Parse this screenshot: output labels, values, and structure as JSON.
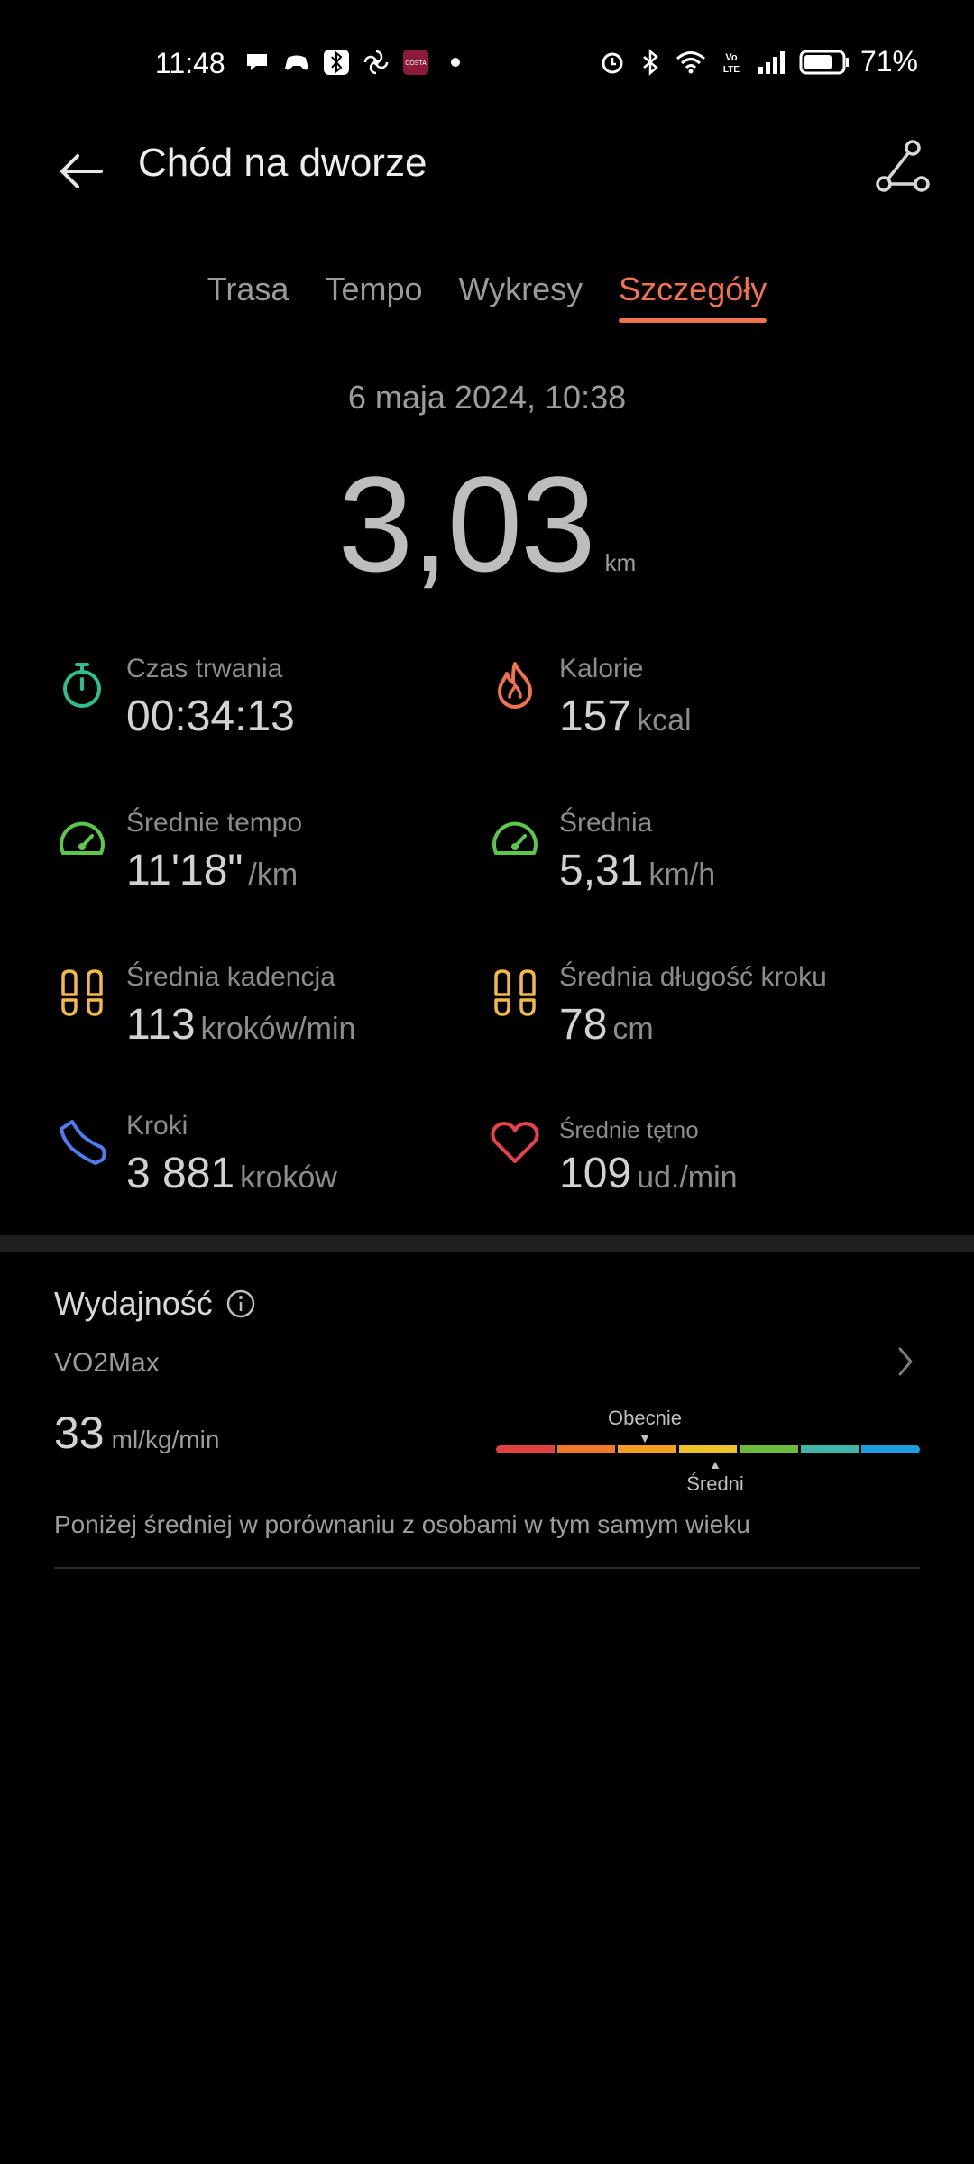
{
  "status_bar": {
    "time": "11:48",
    "battery": "71%",
    "left_icons": [
      "chat-bubble-icon",
      "game-controller-icon",
      "bluetooth-app-icon",
      "fan-icon",
      "costa-app-icon",
      "dot-icon"
    ],
    "right_icons": [
      "alarm-icon",
      "bluetooth-icon",
      "wifi-icon",
      "volte-icon",
      "signal-icon",
      "battery-icon"
    ]
  },
  "header": {
    "title": "Chód na dworze"
  },
  "tabs": [
    {
      "label": "Trasa",
      "active": false
    },
    {
      "label": "Tempo",
      "active": false
    },
    {
      "label": "Wykresy",
      "active": false
    },
    {
      "label": "Szczegóły",
      "active": true
    }
  ],
  "summary": {
    "date": "6 maja 2024, 10:38",
    "distance": "3,03",
    "distance_unit": "km"
  },
  "metrics": {
    "duration": {
      "label": "Czas trwania",
      "value": "00:34:13",
      "unit": ""
    },
    "calories": {
      "label": "Kalorie",
      "value": "157",
      "unit": "kcal"
    },
    "avg_pace": {
      "label": "Średnie tempo",
      "value": "11'18\"",
      "unit": "/km"
    },
    "avg_speed": {
      "label": "Średnia",
      "value": "5,31",
      "unit": "km/h"
    },
    "avg_cadence": {
      "label": "Średnia kadencja",
      "value": "113",
      "unit": "kroków/min"
    },
    "avg_stride": {
      "label": "Średnia długość kroku",
      "value": "78",
      "unit": "cm"
    },
    "steps": {
      "label": "Kroki",
      "value": "3 881",
      "unit": "kroków"
    },
    "avg_hr": {
      "label": "Średnie tętno",
      "value": "109",
      "unit": "ud./min"
    }
  },
  "performance": {
    "title": "Wydajność",
    "vo2_label": "VO2Max",
    "vo2_value": "33",
    "vo2_unit": "ml/kg/min",
    "marker_current": "Obecnie",
    "marker_average": "Średni",
    "comparison": "Poniżej średniej w porównaniu z osobami w tym samym wieku",
    "scale_colors": [
      "#e0433f",
      "#f07a2a",
      "#f4a020",
      "#f0c22a",
      "#6cbb3c",
      "#3fb7a8",
      "#1e9ee0"
    ]
  },
  "colors": {
    "accent": "#f0724e",
    "duration_icon": "#2fbf8f",
    "calories_icon": "#f0724e",
    "speed_icon": "#5cc84a",
    "footprint_icon": "#f2b84a",
    "steps_icon": "#4b7cf0",
    "heart_icon": "#e8424f"
  }
}
